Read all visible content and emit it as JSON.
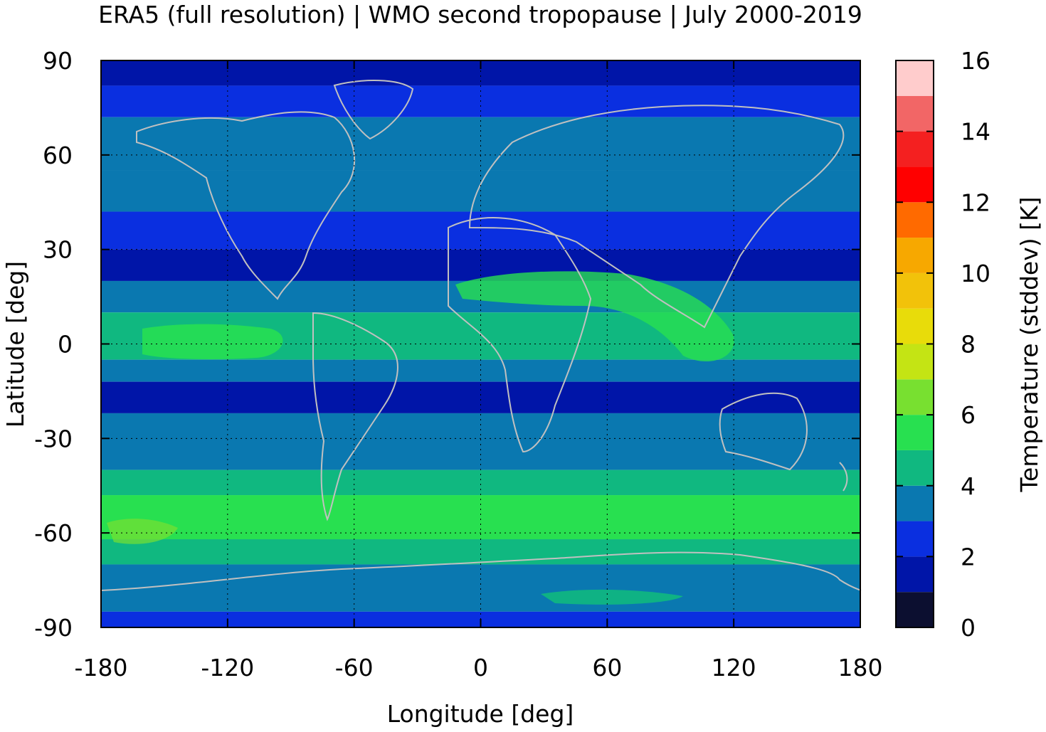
{
  "title": "ERA5 (full resolution) | WMO second tropopause | July 2000-2019",
  "map": {
    "type": "heatmap",
    "projection": "equirectangular",
    "grid": true,
    "coastline_color": "#c0c0c0",
    "x_axis": {
      "label": "Longitude [deg]",
      "range": [
        -180,
        180
      ],
      "ticks": [
        "-180",
        "-120",
        "-60",
        "0",
        "60",
        "120",
        "180"
      ]
    },
    "y_axis": {
      "label": "Latitude [deg]",
      "range": [
        -90,
        90
      ],
      "ticks": [
        "-90",
        "-60",
        "-30",
        "0",
        "30",
        "60",
        "90"
      ]
    },
    "zonal_bands": [
      {
        "lat_from": 90,
        "lat_to": 82,
        "value": 1.5
      },
      {
        "lat_from": 82,
        "lat_to": 72,
        "value": 2.5
      },
      {
        "lat_from": 72,
        "lat_to": 55,
        "value": 3.5
      },
      {
        "lat_from": 55,
        "lat_to": 42,
        "value": 3.0
      },
      {
        "lat_from": 42,
        "lat_to": 30,
        "value": 2.5
      },
      {
        "lat_from": 30,
        "lat_to": 20,
        "value": 1.5
      },
      {
        "lat_from": 20,
        "lat_to": 10,
        "value": 3.5
      },
      {
        "lat_from": 10,
        "lat_to": -5,
        "value": 4.5
      },
      {
        "lat_from": -5,
        "lat_to": -12,
        "value": 3.5
      },
      {
        "lat_from": -12,
        "lat_to": -22,
        "value": 1.5
      },
      {
        "lat_from": -22,
        "lat_to": -40,
        "value": 3.5
      },
      {
        "lat_from": -40,
        "lat_to": -48,
        "value": 4.5
      },
      {
        "lat_from": -48,
        "lat_to": -62,
        "value": 5.5
      },
      {
        "lat_from": -62,
        "lat_to": -70,
        "value": 4.5
      },
      {
        "lat_from": -70,
        "lat_to": -85,
        "value": 3.5
      },
      {
        "lat_from": -85,
        "lat_to": -90,
        "value": 2.5
      }
    ]
  },
  "colorbar": {
    "label": "Temperature (stddev) [K]",
    "range": [
      0,
      16
    ],
    "ticks": [
      "0",
      "2",
      "4",
      "6",
      "8",
      "10",
      "12",
      "14",
      "16"
    ],
    "colors": [
      "#0c0f30",
      "#0015a8",
      "#0a2fe0",
      "#0a78b0",
      "#10b880",
      "#28e050",
      "#78e030",
      "#c4e414",
      "#e8dc0a",
      "#f2c20a",
      "#f7a800",
      "#ff6a00",
      "#ff0000",
      "#f42020",
      "#f26666",
      "#ffcccc"
    ]
  }
}
